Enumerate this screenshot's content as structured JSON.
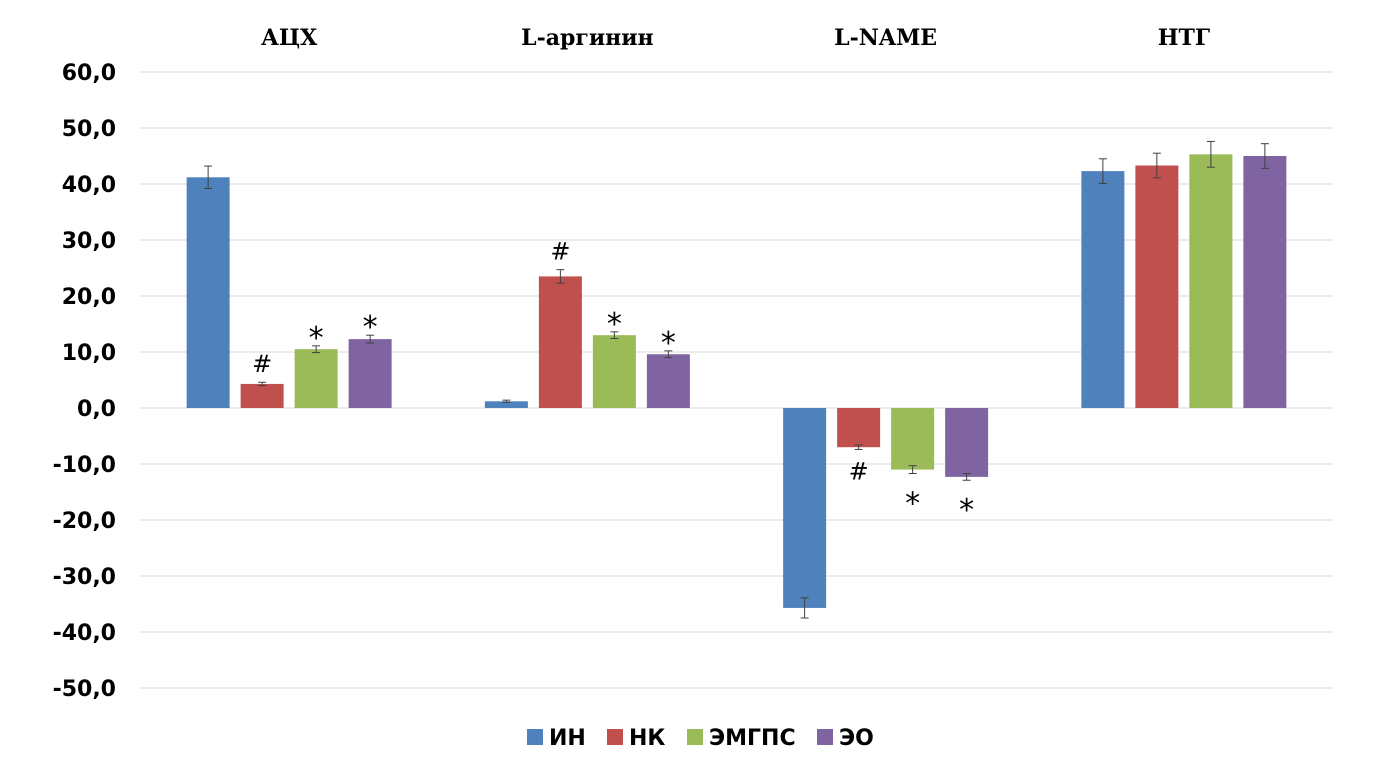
{
  "chart_data": {
    "type": "bar",
    "categories": [
      "АЦХ",
      "L-аргинин",
      "L-NAME",
      "НТГ"
    ],
    "series": [
      {
        "name": "ИН",
        "color": "#4f81bd",
        "values": [
          41.2,
          1.2,
          -35.7,
          42.3
        ],
        "errors": [
          2.0,
          0.2,
          1.8,
          2.2
        ]
      },
      {
        "name": "НК",
        "color": "#c0504d",
        "values": [
          4.3,
          23.5,
          -7.0,
          43.3
        ],
        "errors": [
          0.3,
          1.2,
          0.4,
          2.2
        ]
      },
      {
        "name": "ЭМГПС",
        "color": "#9bbb59",
        "values": [
          10.5,
          13.0,
          -11.0,
          45.3
        ],
        "errors": [
          0.6,
          0.6,
          0.7,
          2.3
        ]
      },
      {
        "name": "ЭО",
        "color": "#8064a2",
        "values": [
          12.3,
          9.6,
          -12.3,
          45.0
        ],
        "errors": [
          0.7,
          0.6,
          0.6,
          2.2
        ]
      }
    ],
    "annotations": [
      {
        "series": 1,
        "category": 0,
        "text": "#"
      },
      {
        "series": 2,
        "category": 0,
        "text": "*"
      },
      {
        "series": 3,
        "category": 0,
        "text": "*"
      },
      {
        "series": 1,
        "category": 1,
        "text": "#"
      },
      {
        "series": 2,
        "category": 1,
        "text": "*"
      },
      {
        "series": 3,
        "category": 1,
        "text": "*"
      },
      {
        "series": 1,
        "category": 2,
        "text": "#"
      },
      {
        "series": 2,
        "category": 2,
        "text": "*"
      },
      {
        "series": 3,
        "category": 2,
        "text": "*"
      }
    ],
    "ylim": [
      -50,
      60
    ],
    "yticks": [
      60,
      50,
      40,
      30,
      20,
      10,
      0,
      -10,
      -20,
      -30,
      -40,
      -50
    ],
    "ytick_labels": [
      "60,0",
      "50,0",
      "40,0",
      "30,0",
      "20,0",
      "10,0",
      "0,0",
      "-10,0",
      "-20,0",
      "-30,0",
      "-40,0",
      "-50,0"
    ],
    "grid": true,
    "legend_position": "bottom-center",
    "title": "",
    "xlabel": "",
    "ylabel": ""
  }
}
